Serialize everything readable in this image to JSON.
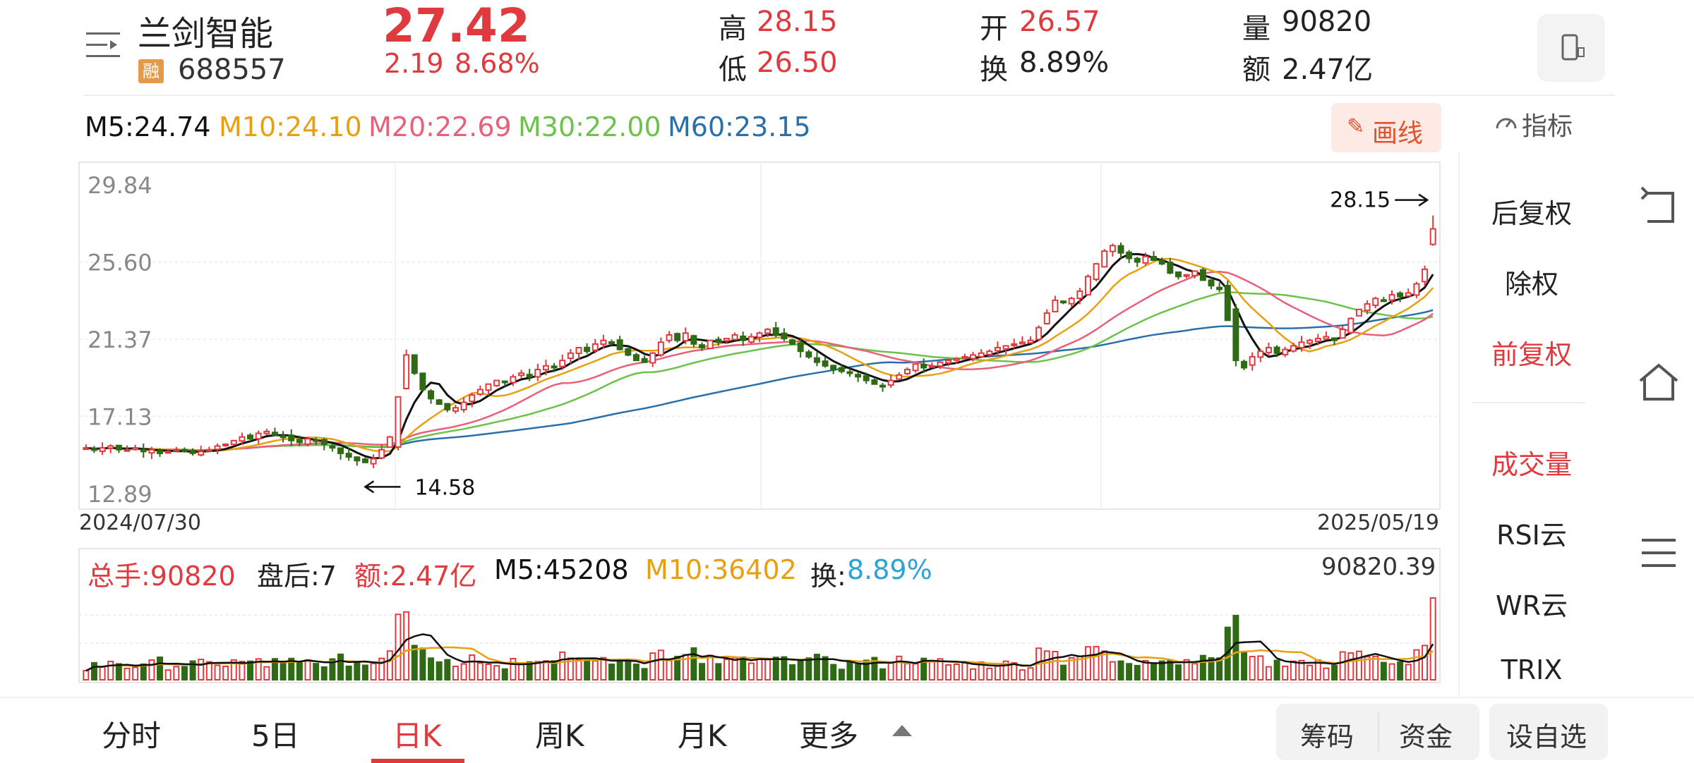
{
  "header": {
    "name": "兰剑智能",
    "code": "688557",
    "margin_badge": "融",
    "price": "27.42",
    "change": "2.19",
    "change_pct": "8.68%",
    "high_label": "高",
    "high": "28.15",
    "low_label": "低",
    "low": "26.50",
    "open_label": "开",
    "open": "26.57",
    "turnover_label": "换",
    "turnover": "8.89%",
    "volume_label": "量",
    "volume": "90820",
    "amount_label": "额",
    "amount": "2.47亿"
  },
  "ma_bar": {
    "m5": "M5:24.74",
    "m10": "M10:24.10",
    "m20": "M20:22.69",
    "m30": "M30:22.00",
    "m60": "M60:23.15",
    "draw_button": "画线",
    "indicator_label": "指标"
  },
  "colors": {
    "up": "#e03a3e",
    "down": "#2e6b14",
    "m5": "#111111",
    "m10": "#e8a010",
    "m20": "#e9607a",
    "m30": "#6cc24a",
    "m60": "#2a6fa8"
  },
  "side_menu": [
    "后复权",
    "除权",
    "前复权",
    "成交量",
    "RSI云",
    "WR云",
    "TRIX"
  ],
  "volume_bar": {
    "total": "总手:90820",
    "after_hours": "盘后:7",
    "amount": "额:2.47亿",
    "m5": "M5:45208",
    "m10": "M10:36402",
    "turnover_label": "换:",
    "turnover": "8.89%",
    "max": "90820.39"
  },
  "tabs": [
    "分时",
    "5日",
    "日K",
    "周K",
    "月K",
    "更多"
  ],
  "buttons": {
    "chips": "筹码",
    "funds": "资金",
    "watchlist": "设自选"
  },
  "chart_data": {
    "type": "candlestick",
    "y_ticks": [
      "29.84",
      "25.60",
      "21.37",
      "17.13",
      "12.89"
    ],
    "ylim": [
      12.89,
      29.84
    ],
    "x_labels": [
      "2024/07/30",
      "2025/05/19"
    ],
    "annotations": {
      "high": "28.15",
      "low": "14.58"
    },
    "close": [
      15.4,
      15.3,
      15.4,
      15.5,
      15.3,
      15.3,
      15.4,
      15.2,
      15.3,
      15.1,
      15.2,
      15.3,
      15.2,
      15.1,
      15.2,
      15.3,
      15.5,
      15.6,
      15.8,
      16,
      15.9,
      16.2,
      16.3,
      16.1,
      16,
      15.8,
      15.7,
      15.9,
      15.8,
      15.6,
      15.4,
      15.1,
      14.9,
      14.7,
      14.6,
      14.8,
      15.3,
      16,
      18.2,
      20.5,
      19.5,
      18.6,
      18.1,
      17.8,
      17.5,
      17.6,
      17.9,
      18.3,
      18.6,
      18.9,
      19.1,
      19,
      19.3,
      19.5,
      19.3,
      19.7,
      19.9,
      19.8,
      20.2,
      20.6,
      20.9,
      20.7,
      21.1,
      21.3,
      21.2,
      20.8,
      20.5,
      20.2,
      20.1,
      20.6,
      21.2,
      21.6,
      21.3,
      21.7,
      21.1,
      20.9,
      21.3,
      21.2,
      21.4,
      21.6,
      21.3,
      21.5,
      21.7,
      21.9,
      21.6,
      21.4,
      21.1,
      20.7,
      20.4,
      20.1,
      19.9,
      19.7,
      19.6,
      19.5,
      19.3,
      19.1,
      18.9,
      18.8,
      19.1,
      19.4,
      19.7,
      20,
      19.8,
      19.9,
      20.1,
      20.2,
      20.3,
      20.4,
      20.5,
      20.6,
      20.7,
      20.9,
      21,
      21.1,
      21.2,
      21.3,
      22,
      22.8,
      23.5,
      23.4,
      23.6,
      24,
      24.8,
      25.5,
      26.2,
      26.5,
      26.1,
      25.8,
      25.6,
      25.9,
      25.7,
      25.5,
      25,
      24.8,
      24.9,
      25.1,
      24.6,
      24.3,
      24.1,
      22.4,
      20.2,
      19.8,
      20.4,
      20.7,
      20.9,
      20.6,
      20.8,
      21,
      21.2,
      21.3,
      21.4,
      21.5,
      21.3,
      21.9,
      22.5,
      23,
      23.3,
      23.6,
      23.5,
      23.8,
      23.7,
      23.9,
      24.4,
      25.2,
      27.42
    ],
    "volume_max": "90820.39"
  }
}
